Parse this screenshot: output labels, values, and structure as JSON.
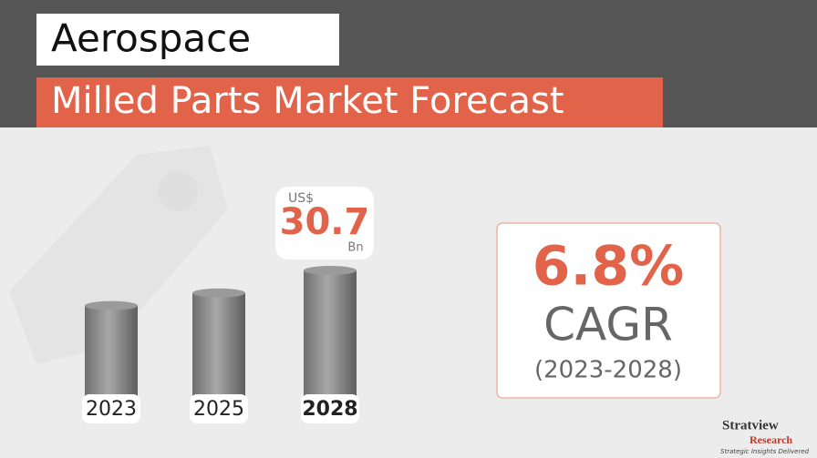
{
  "header": {
    "title": "Aerospace",
    "subtitle": "Milled Parts Market Forecast"
  },
  "chart_data": {
    "type": "bar",
    "categories": [
      "2023",
      "2025",
      "2028"
    ],
    "values": [
      22.1,
      25.2,
      30.7
    ],
    "value_labels": [
      null,
      null,
      "30.7"
    ],
    "value_prefix": "US$",
    "value_suffix": "Bn",
    "color": "#8a8a8a"
  },
  "cagr": {
    "value": "6.8%",
    "label": "CAGR",
    "period": "(2023-2028)"
  },
  "logo": {
    "name": "Stratview",
    "name2": "Research",
    "tagline": "Strategic Insights Delivered"
  }
}
